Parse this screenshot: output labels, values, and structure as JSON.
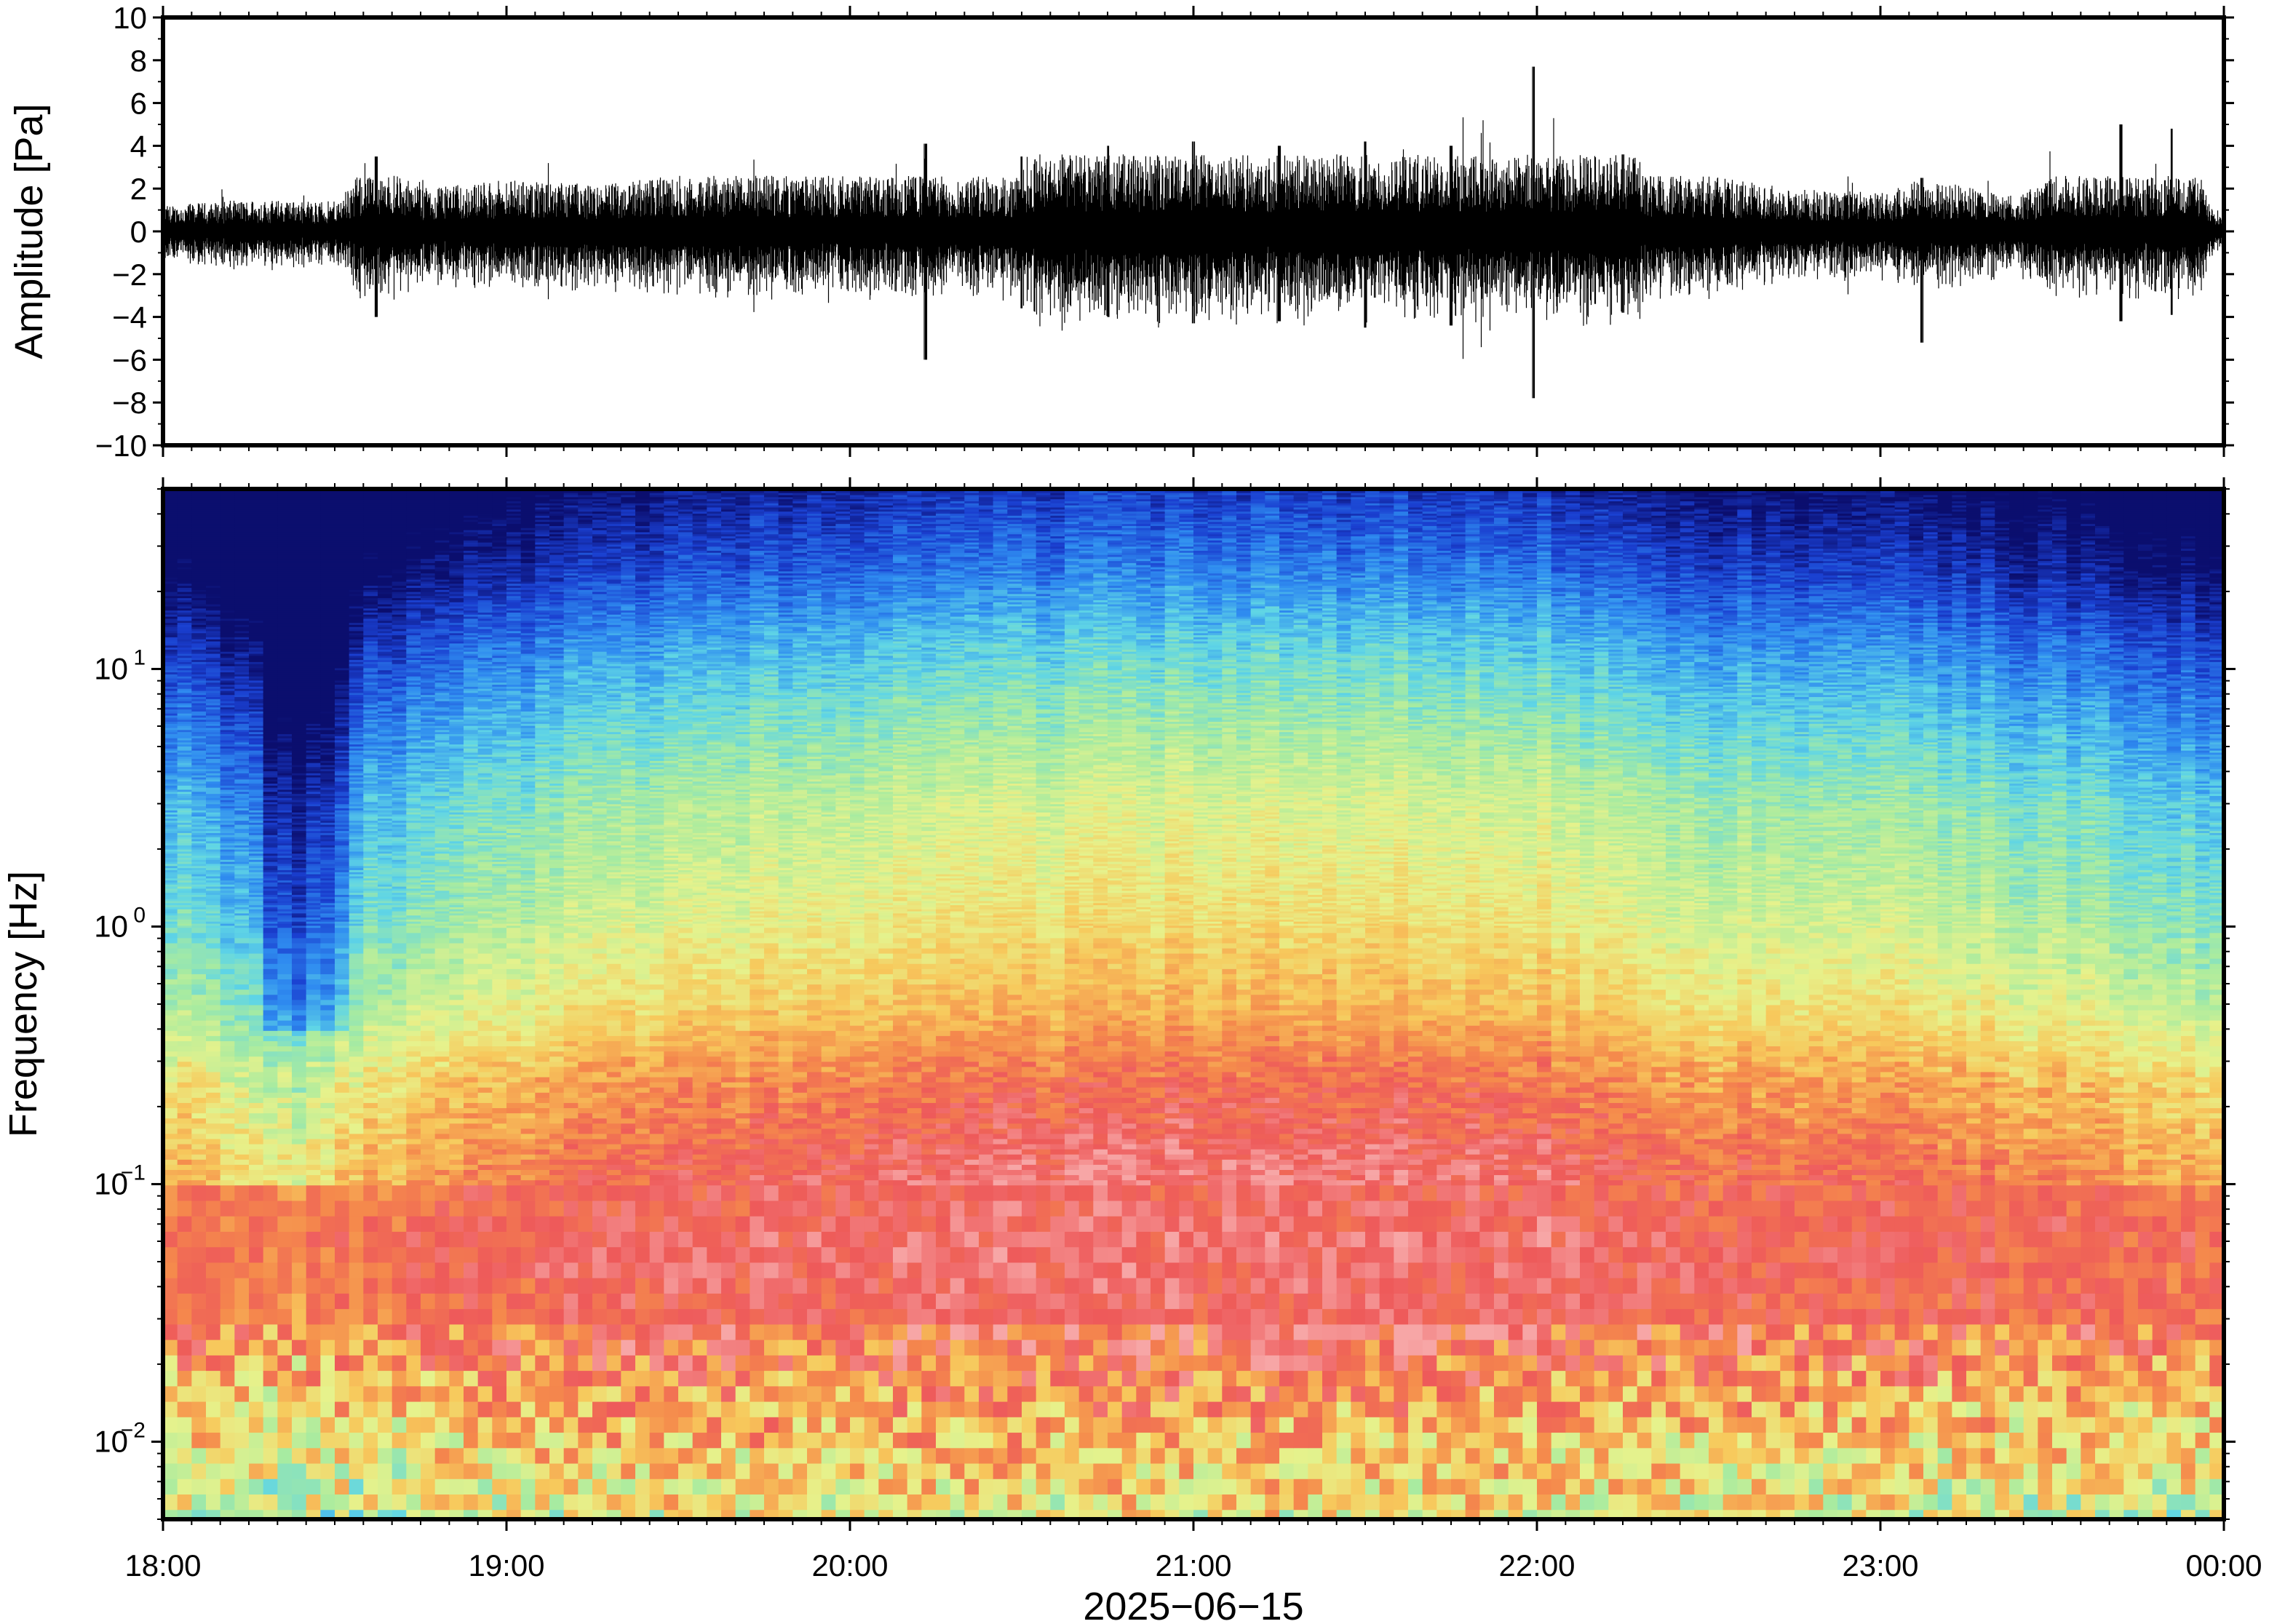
{
  "chart_data": [
    {
      "type": "line",
      "panel": "waveform",
      "ylabel": "Amplitude [Pa]",
      "ylim": [
        -10,
        10
      ],
      "yticks": [
        10,
        8,
        6,
        4,
        2,
        0,
        -2,
        -4,
        -6,
        -8,
        -10
      ],
      "ytick_labels": [
        "10",
        "8",
        "6",
        "4",
        "2",
        "0",
        "−2",
        "−4",
        "−6",
        "−8",
        "−10"
      ],
      "xlim_hours": [
        18,
        24
      ],
      "series": [
        {
          "values_description_envelope": [
            {
              "t": 18.0,
              "max": 1.2,
              "min": -1.3
            },
            {
              "t": 18.25,
              "max": 1.5,
              "min": -1.6
            },
            {
              "t": 18.5,
              "max": 1.4,
              "min": -1.5
            },
            {
              "t": 18.62,
              "max": 3.5,
              "min": -4.0
            },
            {
              "t": 18.75,
              "max": 2.0,
              "min": -2.5
            },
            {
              "t": 19.0,
              "max": 2.4,
              "min": -2.8
            },
            {
              "t": 19.25,
              "max": 2.2,
              "min": -2.4
            },
            {
              "t": 19.5,
              "max": 2.6,
              "min": -3.0
            },
            {
              "t": 19.75,
              "max": 2.8,
              "min": -3.0
            },
            {
              "t": 20.0,
              "max": 3.0,
              "min": -3.2
            },
            {
              "t": 20.22,
              "max": 4.1,
              "min": -6.0
            },
            {
              "t": 20.5,
              "max": 3.5,
              "min": -3.6
            },
            {
              "t": 20.75,
              "max": 4.0,
              "min": -4.0
            },
            {
              "t": 21.0,
              "max": 4.2,
              "min": -4.3
            },
            {
              "t": 21.25,
              "max": 4.0,
              "min": -4.2
            },
            {
              "t": 21.5,
              "max": 4.2,
              "min": -4.5
            },
            {
              "t": 21.75,
              "max": 4.0,
              "min": -4.4
            },
            {
              "t": 21.99,
              "max": 7.7,
              "min": -7.8
            },
            {
              "t": 22.25,
              "max": 3.6,
              "min": -3.8
            },
            {
              "t": 22.5,
              "max": 2.6,
              "min": -2.8
            },
            {
              "t": 22.75,
              "max": 2.0,
              "min": -2.2
            },
            {
              "t": 23.0,
              "max": 1.8,
              "min": -2.0
            },
            {
              "t": 23.12,
              "max": 2.5,
              "min": -5.2
            },
            {
              "t": 23.4,
              "max": 1.6,
              "min": -1.8
            },
            {
              "t": 23.7,
              "max": 5.0,
              "min": -4.2
            },
            {
              "t": 23.85,
              "max": 4.8,
              "min": -3.9
            },
            {
              "t": 24.0,
              "max": 0.6,
              "min": -0.6
            }
          ]
        }
      ]
    },
    {
      "type": "heatmap",
      "panel": "spectrogram",
      "ylabel": "Frequency [Hz]",
      "yscale": "log",
      "ylim_hz": [
        0.005,
        50
      ],
      "ytick_major": [
        {
          "value": 10,
          "base": "10",
          "exp": "1"
        },
        {
          "value": 1,
          "base": "10",
          "exp": "0"
        },
        {
          "value": 0.1,
          "base": "10",
          "exp": "−1"
        },
        {
          "value": 0.01,
          "base": "10",
          "exp": "−2"
        }
      ],
      "xlim_hours": [
        18,
        24
      ],
      "xticks": [
        "18:00",
        "19:00",
        "20:00",
        "21:00",
        "22:00",
        "23:00",
        "00:00"
      ],
      "xlabel": "2025−06−15",
      "colormap": [
        "#0b0e6e",
        "#1a3fd0",
        "#2f8cf0",
        "#5fd5e6",
        "#a8eba0",
        "#e6f28c",
        "#f7c95c",
        "#f58a4c",
        "#ee5a5a",
        "#f7a6a6"
      ],
      "level_profile_by_log_freq": [
        {
          "hz": 50,
          "level": 0.02
        },
        {
          "hz": 25,
          "level": 0.12
        },
        {
          "hz": 12,
          "level": 0.26
        },
        {
          "hz": 6,
          "level": 0.36
        },
        {
          "hz": 3,
          "level": 0.45
        },
        {
          "hz": 1.2,
          "level": 0.52
        },
        {
          "hz": 0.5,
          "level": 0.62
        },
        {
          "hz": 0.25,
          "level": 0.76
        },
        {
          "hz": 0.12,
          "level": 0.85
        },
        {
          "hz": 0.06,
          "level": 0.9
        },
        {
          "hz": 0.03,
          "level": 0.86
        },
        {
          "hz": 0.015,
          "level": 0.72
        },
        {
          "hz": 0.005,
          "level": 0.55
        }
      ],
      "level_offset_by_time": [
        {
          "t": 18.0,
          "offset": -0.08
        },
        {
          "t": 18.4,
          "offset": -0.16
        },
        {
          "t": 18.6,
          "offset": -0.08
        },
        {
          "t": 19.2,
          "offset": -0.02
        },
        {
          "t": 20.0,
          "offset": 0.03
        },
        {
          "t": 21.0,
          "offset": 0.05
        },
        {
          "t": 22.0,
          "offset": 0.04
        },
        {
          "t": 22.5,
          "offset": -0.01
        },
        {
          "t": 23.0,
          "offset": 0.0
        },
        {
          "t": 23.6,
          "offset": -0.05
        },
        {
          "t": 24.0,
          "offset": -0.08
        }
      ]
    }
  ]
}
